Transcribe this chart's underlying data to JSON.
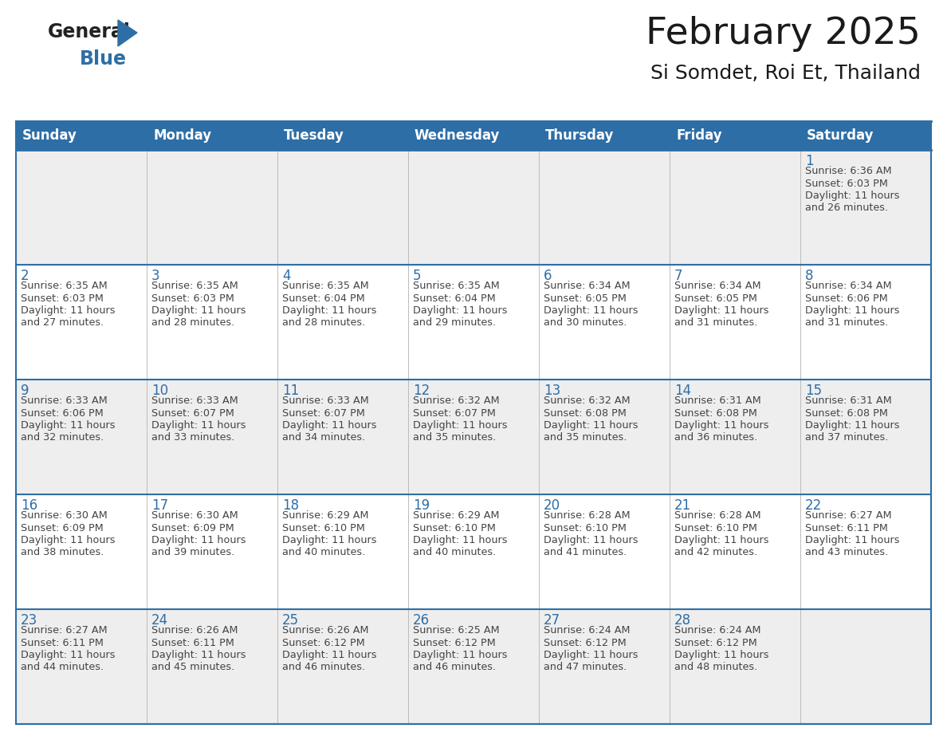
{
  "title": "February 2025",
  "subtitle": "Si Somdet, Roi Et, Thailand",
  "days_of_week": [
    "Sunday",
    "Monday",
    "Tuesday",
    "Wednesday",
    "Thursday",
    "Friday",
    "Saturday"
  ],
  "header_bg": "#2E6EA6",
  "header_text_color": "#FFFFFF",
  "day_number_color": "#2E6EA6",
  "cell_text_color": "#444444",
  "grid_line_color": "#2E6EA6",
  "row_bg_even": "#EEEEEE",
  "row_bg_odd": "#FFFFFF",
  "calendar_data": [
    {
      "day": 1,
      "col": 6,
      "row": 0,
      "sunrise": "6:36 AM",
      "sunset": "6:03 PM",
      "daylight_hours": 11,
      "daylight_minutes": 26
    },
    {
      "day": 2,
      "col": 0,
      "row": 1,
      "sunrise": "6:35 AM",
      "sunset": "6:03 PM",
      "daylight_hours": 11,
      "daylight_minutes": 27
    },
    {
      "day": 3,
      "col": 1,
      "row": 1,
      "sunrise": "6:35 AM",
      "sunset": "6:03 PM",
      "daylight_hours": 11,
      "daylight_minutes": 28
    },
    {
      "day": 4,
      "col": 2,
      "row": 1,
      "sunrise": "6:35 AM",
      "sunset": "6:04 PM",
      "daylight_hours": 11,
      "daylight_minutes": 28
    },
    {
      "day": 5,
      "col": 3,
      "row": 1,
      "sunrise": "6:35 AM",
      "sunset": "6:04 PM",
      "daylight_hours": 11,
      "daylight_minutes": 29
    },
    {
      "day": 6,
      "col": 4,
      "row": 1,
      "sunrise": "6:34 AM",
      "sunset": "6:05 PM",
      "daylight_hours": 11,
      "daylight_minutes": 30
    },
    {
      "day": 7,
      "col": 5,
      "row": 1,
      "sunrise": "6:34 AM",
      "sunset": "6:05 PM",
      "daylight_hours": 11,
      "daylight_minutes": 31
    },
    {
      "day": 8,
      "col": 6,
      "row": 1,
      "sunrise": "6:34 AM",
      "sunset": "6:06 PM",
      "daylight_hours": 11,
      "daylight_minutes": 31
    },
    {
      "day": 9,
      "col": 0,
      "row": 2,
      "sunrise": "6:33 AM",
      "sunset": "6:06 PM",
      "daylight_hours": 11,
      "daylight_minutes": 32
    },
    {
      "day": 10,
      "col": 1,
      "row": 2,
      "sunrise": "6:33 AM",
      "sunset": "6:07 PM",
      "daylight_hours": 11,
      "daylight_minutes": 33
    },
    {
      "day": 11,
      "col": 2,
      "row": 2,
      "sunrise": "6:33 AM",
      "sunset": "6:07 PM",
      "daylight_hours": 11,
      "daylight_minutes": 34
    },
    {
      "day": 12,
      "col": 3,
      "row": 2,
      "sunrise": "6:32 AM",
      "sunset": "6:07 PM",
      "daylight_hours": 11,
      "daylight_minutes": 35
    },
    {
      "day": 13,
      "col": 4,
      "row": 2,
      "sunrise": "6:32 AM",
      "sunset": "6:08 PM",
      "daylight_hours": 11,
      "daylight_minutes": 35
    },
    {
      "day": 14,
      "col": 5,
      "row": 2,
      "sunrise": "6:31 AM",
      "sunset": "6:08 PM",
      "daylight_hours": 11,
      "daylight_minutes": 36
    },
    {
      "day": 15,
      "col": 6,
      "row": 2,
      "sunrise": "6:31 AM",
      "sunset": "6:08 PM",
      "daylight_hours": 11,
      "daylight_minutes": 37
    },
    {
      "day": 16,
      "col": 0,
      "row": 3,
      "sunrise": "6:30 AM",
      "sunset": "6:09 PM",
      "daylight_hours": 11,
      "daylight_minutes": 38
    },
    {
      "day": 17,
      "col": 1,
      "row": 3,
      "sunrise": "6:30 AM",
      "sunset": "6:09 PM",
      "daylight_hours": 11,
      "daylight_minutes": 39
    },
    {
      "day": 18,
      "col": 2,
      "row": 3,
      "sunrise": "6:29 AM",
      "sunset": "6:10 PM",
      "daylight_hours": 11,
      "daylight_minutes": 40
    },
    {
      "day": 19,
      "col": 3,
      "row": 3,
      "sunrise": "6:29 AM",
      "sunset": "6:10 PM",
      "daylight_hours": 11,
      "daylight_minutes": 40
    },
    {
      "day": 20,
      "col": 4,
      "row": 3,
      "sunrise": "6:28 AM",
      "sunset": "6:10 PM",
      "daylight_hours": 11,
      "daylight_minutes": 41
    },
    {
      "day": 21,
      "col": 5,
      "row": 3,
      "sunrise": "6:28 AM",
      "sunset": "6:10 PM",
      "daylight_hours": 11,
      "daylight_minutes": 42
    },
    {
      "day": 22,
      "col": 6,
      "row": 3,
      "sunrise": "6:27 AM",
      "sunset": "6:11 PM",
      "daylight_hours": 11,
      "daylight_minutes": 43
    },
    {
      "day": 23,
      "col": 0,
      "row": 4,
      "sunrise": "6:27 AM",
      "sunset": "6:11 PM",
      "daylight_hours": 11,
      "daylight_minutes": 44
    },
    {
      "day": 24,
      "col": 1,
      "row": 4,
      "sunrise": "6:26 AM",
      "sunset": "6:11 PM",
      "daylight_hours": 11,
      "daylight_minutes": 45
    },
    {
      "day": 25,
      "col": 2,
      "row": 4,
      "sunrise": "6:26 AM",
      "sunset": "6:12 PM",
      "daylight_hours": 11,
      "daylight_minutes": 46
    },
    {
      "day": 26,
      "col": 3,
      "row": 4,
      "sunrise": "6:25 AM",
      "sunset": "6:12 PM",
      "daylight_hours": 11,
      "daylight_minutes": 46
    },
    {
      "day": 27,
      "col": 4,
      "row": 4,
      "sunrise": "6:24 AM",
      "sunset": "6:12 PM",
      "daylight_hours": 11,
      "daylight_minutes": 47
    },
    {
      "day": 28,
      "col": 5,
      "row": 4,
      "sunrise": "6:24 AM",
      "sunset": "6:12 PM",
      "daylight_hours": 11,
      "daylight_minutes": 48
    }
  ]
}
